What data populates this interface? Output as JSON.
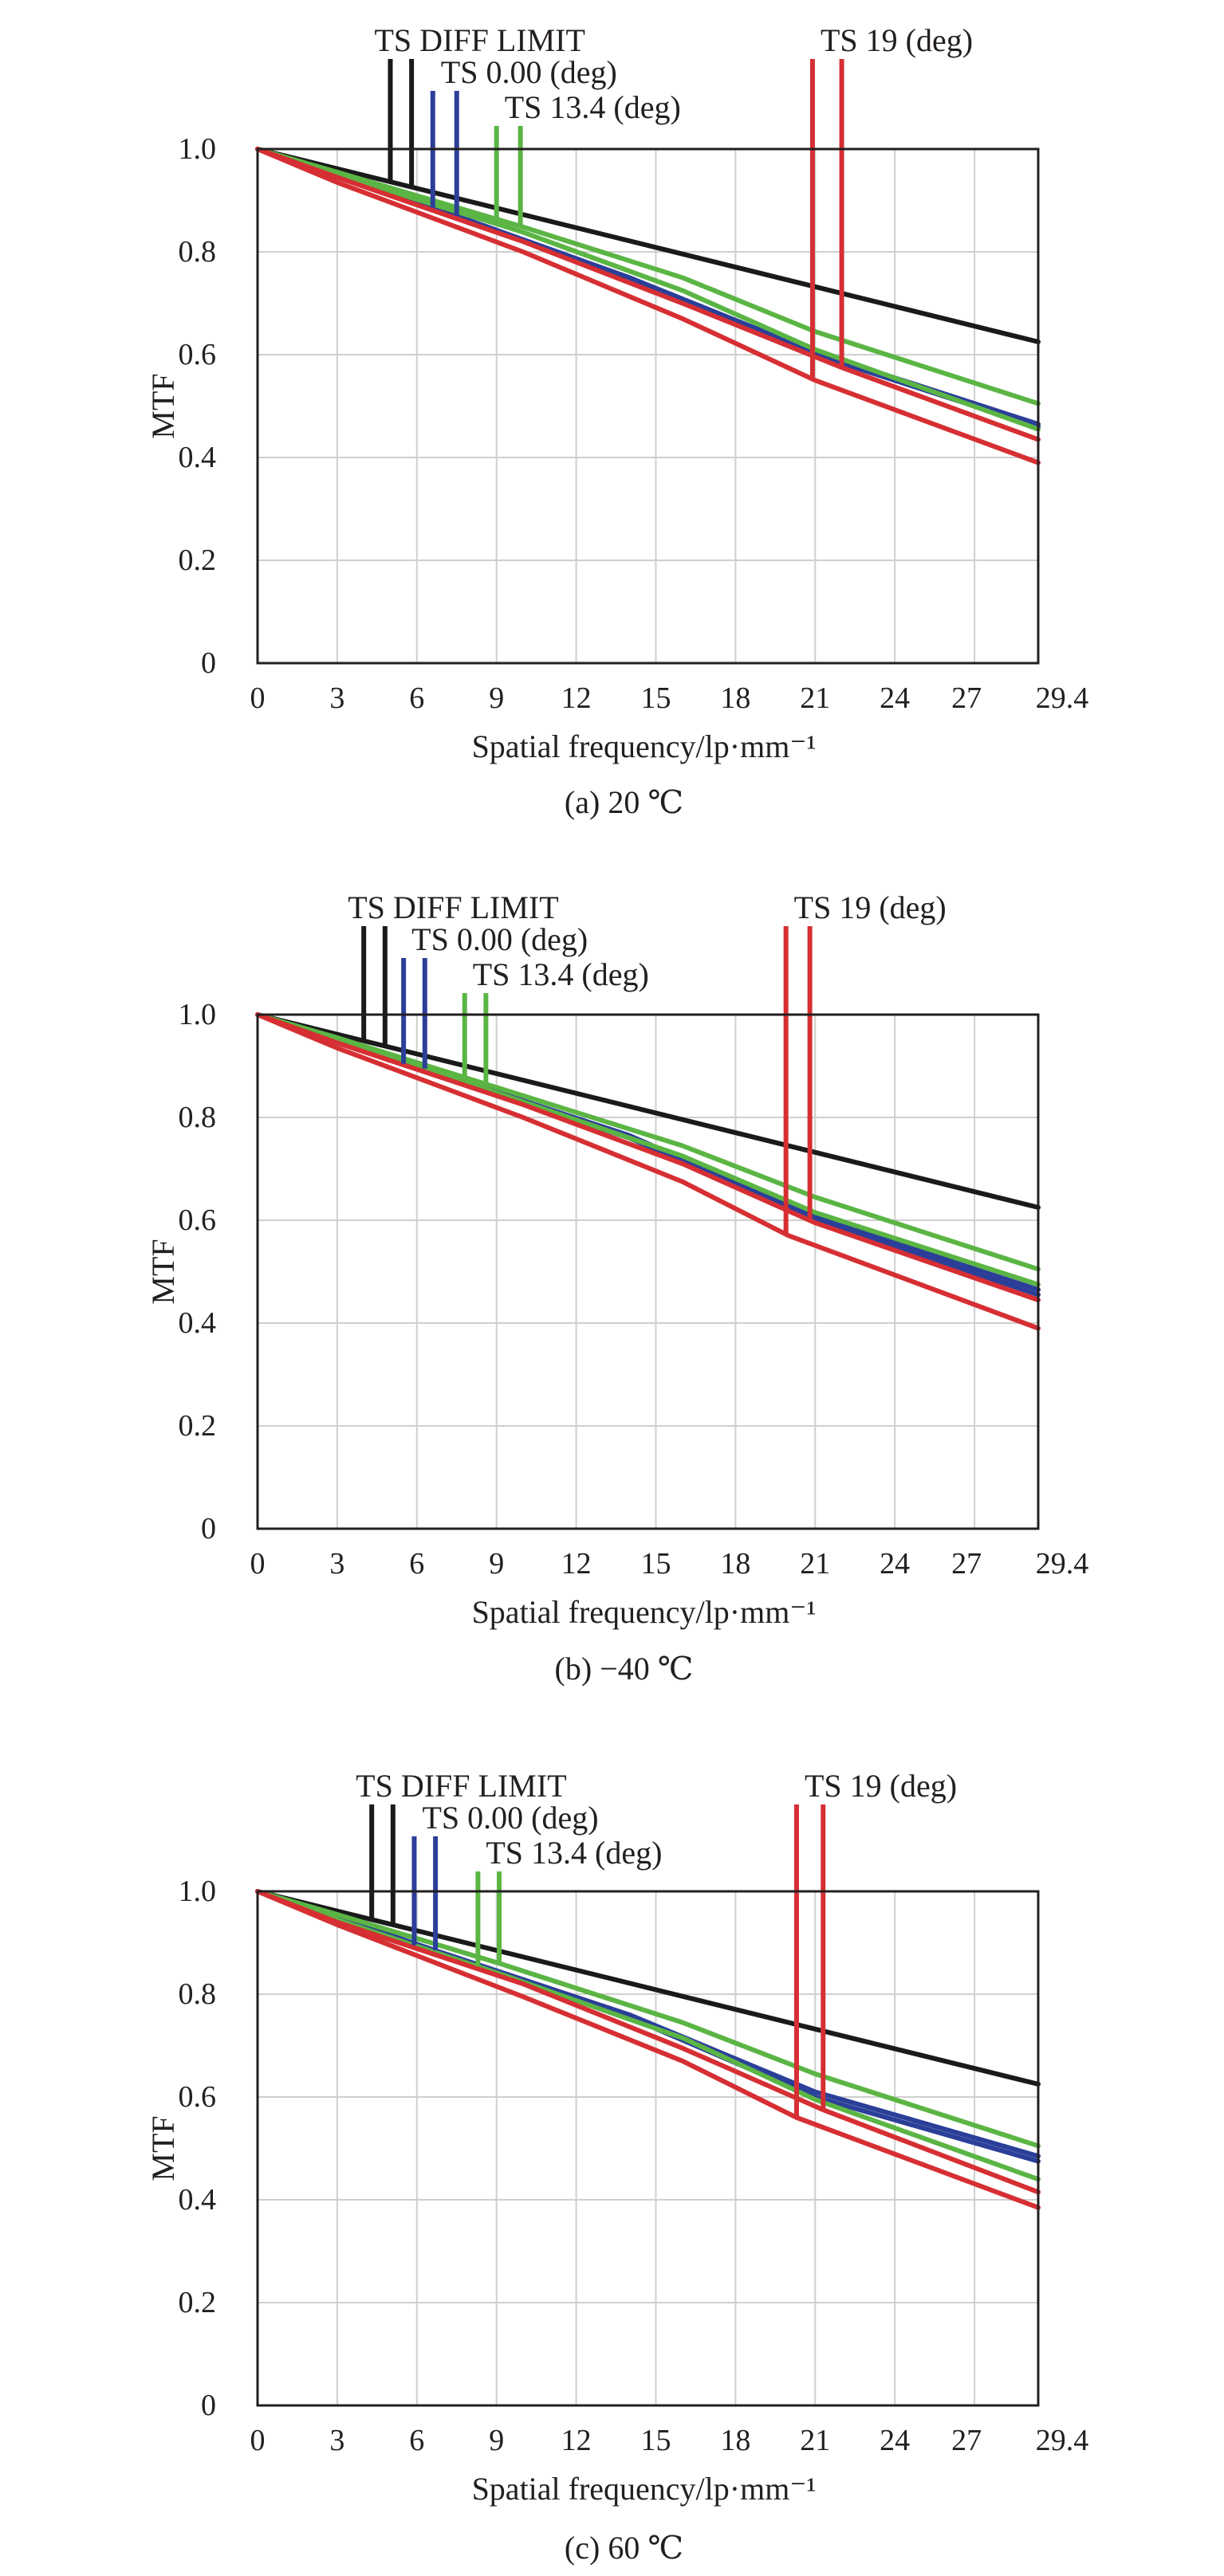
{
  "colors": {
    "diff_limit": "#1a1a1a",
    "ts_0": "#2b3f99",
    "ts_13_4": "#5bb544",
    "ts_19": "#d62f33",
    "grid": "#cfcfcf",
    "text": "#231f20"
  },
  "chart_data": [
    {
      "type": "line",
      "caption": "(a) 20 ℃",
      "xlabel": "Spatial frequency/lp·mm⁻¹",
      "ylabel": "MTF",
      "xlim": [
        0,
        29.4
      ],
      "ylim": [
        0,
        1.0
      ],
      "x_ticks": [
        "0",
        "3",
        "6",
        "9",
        "12",
        "15",
        "18",
        "21",
        "24",
        "27",
        "29.4"
      ],
      "y_ticks": [
        "0",
        "0.2",
        "0.4",
        "0.6",
        "0.8",
        "1.0"
      ],
      "grid": true,
      "legend_labels": [
        {
          "key": "diff_limit",
          "text": "TS DIFF LIMIT",
          "marker_x": [
            5.0,
            5.8
          ]
        },
        {
          "key": "ts_0",
          "text": "TS 0.00 (deg)",
          "marker_x": [
            6.6,
            7.5
          ]
        },
        {
          "key": "ts_13_4",
          "text": "TS 13.4 (deg)",
          "marker_x": [
            9.0,
            9.9
          ]
        },
        {
          "key": "ts_19",
          "text": "TS 19 (deg)",
          "marker_x": [
            20.9,
            22.0
          ]
        }
      ],
      "series": [
        {
          "name": "TS DIFF LIMIT",
          "color_key": "diff_limit",
          "x": [
            0,
            29.4
          ],
          "y": [
            1.0,
            0.625
          ]
        },
        {
          "name": "TS 0.00 (deg)",
          "color_key": "ts_0",
          "x": [
            0,
            3,
            7.5,
            14,
            21,
            29.4
          ],
          "y": [
            1.0,
            0.95,
            0.87,
            0.75,
            0.605,
            0.465
          ]
        },
        {
          "name": "TS 0.00 (deg)",
          "color_key": "ts_0",
          "x": [
            0,
            3,
            7.5,
            14,
            21,
            29.4
          ],
          "y": [
            1.0,
            0.95,
            0.87,
            0.75,
            0.6,
            0.46
          ]
        },
        {
          "name": "TS 13.4 (deg)",
          "color_key": "ts_13_4",
          "x": [
            0,
            3,
            9.9,
            16,
            21,
            29.4
          ],
          "y": [
            1.0,
            0.955,
            0.85,
            0.75,
            0.645,
            0.505
          ]
        },
        {
          "name": "TS 13.4 (deg)",
          "color_key": "ts_13_4",
          "x": [
            0,
            3,
            9.9,
            16,
            21,
            29.4
          ],
          "y": [
            1.0,
            0.95,
            0.84,
            0.725,
            0.61,
            0.455
          ]
        },
        {
          "name": "TS 19 (deg)",
          "color_key": "ts_19",
          "x": [
            0,
            3,
            10,
            16,
            22,
            29.4
          ],
          "y": [
            1.0,
            0.945,
            0.82,
            0.7,
            0.575,
            0.435
          ]
        },
        {
          "name": "TS 19 (deg)",
          "color_key": "ts_19",
          "x": [
            0,
            3,
            10,
            16,
            21,
            29.4
          ],
          "y": [
            1.0,
            0.935,
            0.8,
            0.67,
            0.55,
            0.39
          ]
        }
      ]
    },
    {
      "type": "line",
      "caption": "(b) −40 ℃",
      "xlabel": "Spatial frequency/lp·mm⁻¹",
      "ylabel": "MTF",
      "xlim": [
        0,
        29.4
      ],
      "ylim": [
        0,
        1.0
      ],
      "x_ticks": [
        "0",
        "3",
        "6",
        "9",
        "12",
        "15",
        "18",
        "21",
        "24",
        "27",
        "29.4"
      ],
      "y_ticks": [
        "0",
        "0.2",
        "0.4",
        "0.6",
        "0.8",
        "1.0"
      ],
      "grid": true,
      "legend_labels": [
        {
          "key": "diff_limit",
          "text": "TS DIFF LIMIT",
          "marker_x": [
            4.0,
            4.8
          ]
        },
        {
          "key": "ts_0",
          "text": "TS 0.00 (deg)",
          "marker_x": [
            5.5,
            6.3
          ]
        },
        {
          "key": "ts_13_4",
          "text": "TS 13.4 (deg)",
          "marker_x": [
            7.8,
            8.6
          ]
        },
        {
          "key": "ts_19",
          "text": "TS 19 (deg)",
          "marker_x": [
            19.9,
            20.8
          ]
        }
      ],
      "series": [
        {
          "name": "TS DIFF LIMIT",
          "color_key": "diff_limit",
          "x": [
            0,
            29.4
          ],
          "y": [
            1.0,
            0.625
          ]
        },
        {
          "name": "TS 0.00 (deg)",
          "color_key": "ts_0",
          "x": [
            0,
            3,
            6.3,
            14,
            20.8,
            29.4
          ],
          "y": [
            1.0,
            0.955,
            0.895,
            0.765,
            0.61,
            0.465
          ]
        },
        {
          "name": "TS 0.00 (deg)",
          "color_key": "ts_0",
          "x": [
            0,
            3,
            6.3,
            14,
            20.8,
            29.4
          ],
          "y": [
            1.0,
            0.95,
            0.89,
            0.76,
            0.605,
            0.455
          ]
        },
        {
          "name": "TS 13.4 (deg)",
          "color_key": "ts_13_4",
          "x": [
            0,
            3,
            8.6,
            16,
            21,
            29.4
          ],
          "y": [
            1.0,
            0.955,
            0.865,
            0.745,
            0.645,
            0.505
          ]
        },
        {
          "name": "TS 13.4 (deg)",
          "color_key": "ts_13_4",
          "x": [
            0,
            3,
            8.6,
            16,
            21,
            29.4
          ],
          "y": [
            1.0,
            0.95,
            0.855,
            0.725,
            0.615,
            0.475
          ]
        },
        {
          "name": "TS 19 (deg)",
          "color_key": "ts_19",
          "x": [
            0,
            3,
            10,
            16,
            21,
            29.4
          ],
          "y": [
            1.0,
            0.945,
            0.825,
            0.71,
            0.595,
            0.445
          ]
        },
        {
          "name": "TS 19 (deg)",
          "color_key": "ts_19",
          "x": [
            0,
            3,
            10,
            16,
            20,
            29.4
          ],
          "y": [
            1.0,
            0.935,
            0.8,
            0.675,
            0.57,
            0.39
          ]
        }
      ]
    },
    {
      "type": "line",
      "caption": "(c) 60 ℃",
      "xlabel": "Spatial frequency/lp·mm⁻¹",
      "ylabel": "MTF",
      "xlim": [
        0,
        29.4
      ],
      "ylim": [
        0,
        1.0
      ],
      "x_ticks": [
        "0",
        "3",
        "6",
        "9",
        "12",
        "15",
        "18",
        "21",
        "24",
        "27",
        "29.4"
      ],
      "y_ticks": [
        "0",
        "0.2",
        "0.4",
        "0.6",
        "0.8",
        "1.0"
      ],
      "grid": true,
      "legend_labels": [
        {
          "key": "diff_limit",
          "text": "TS DIFF LIMIT",
          "marker_x": [
            4.3,
            5.1
          ]
        },
        {
          "key": "ts_0",
          "text": "TS 0.00 (deg)",
          "marker_x": [
            5.9,
            6.7
          ]
        },
        {
          "key": "ts_13_4",
          "text": "TS 13.4 (deg)",
          "marker_x": [
            8.3,
            9.1
          ]
        },
        {
          "key": "ts_19",
          "text": "TS 19 (deg)",
          "marker_x": [
            20.3,
            21.3
          ]
        }
      ],
      "series": [
        {
          "name": "TS DIFF LIMIT",
          "color_key": "diff_limit",
          "x": [
            0,
            29.4
          ],
          "y": [
            1.0,
            0.625
          ]
        },
        {
          "name": "TS 0.00 (deg)",
          "color_key": "ts_0",
          "x": [
            0,
            3,
            6.7,
            14,
            21,
            29.4
          ],
          "y": [
            1.0,
            0.95,
            0.885,
            0.76,
            0.61,
            0.485
          ]
        },
        {
          "name": "TS 0.00 (deg)",
          "color_key": "ts_0",
          "x": [
            0,
            3,
            6.7,
            14,
            21,
            29.4
          ],
          "y": [
            1.0,
            0.95,
            0.88,
            0.755,
            0.6,
            0.475
          ]
        },
        {
          "name": "TS 13.4 (deg)",
          "color_key": "ts_13_4",
          "x": [
            0,
            3,
            9.1,
            16,
            21,
            29.4
          ],
          "y": [
            1.0,
            0.955,
            0.86,
            0.745,
            0.645,
            0.505
          ]
        },
        {
          "name": "TS 13.4 (deg)",
          "color_key": "ts_13_4",
          "x": [
            0,
            3,
            9.1,
            16,
            21,
            29.4
          ],
          "y": [
            1.0,
            0.945,
            0.84,
            0.715,
            0.595,
            0.44
          ]
        },
        {
          "name": "TS 19 (deg)",
          "color_key": "ts_19",
          "x": [
            0,
            3,
            10,
            16,
            21.3,
            29.4
          ],
          "y": [
            1.0,
            0.94,
            0.82,
            0.695,
            0.575,
            0.415
          ]
        },
        {
          "name": "TS 19 (deg)",
          "color_key": "ts_19",
          "x": [
            0,
            3,
            10,
            16,
            20.3,
            29.4
          ],
          "y": [
            1.0,
            0.935,
            0.795,
            0.67,
            0.56,
            0.385
          ]
        }
      ]
    }
  ]
}
